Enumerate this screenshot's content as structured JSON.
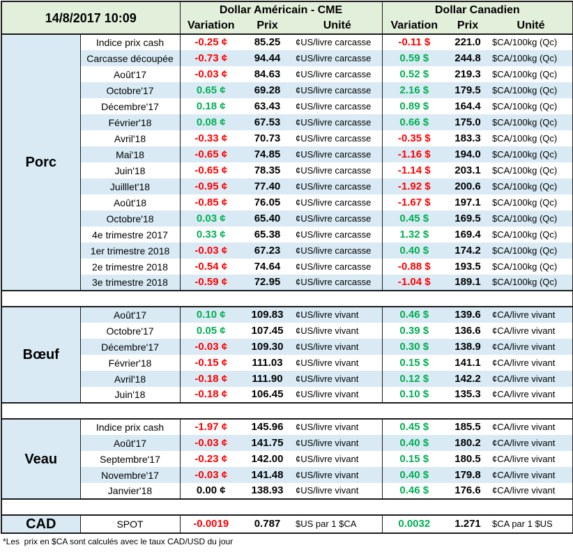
{
  "header": {
    "datetime": "14/8/2017 10:09",
    "usd": {
      "title": "Dollar Américain - CME",
      "variation": "Variation",
      "price": "Prix",
      "unit": "Unité"
    },
    "cad": {
      "title": "Dollar Canadien",
      "variation": "Variation",
      "price": "Prix",
      "unit": "Unité"
    }
  },
  "sections": [
    {
      "name": "Porc",
      "rows": [
        {
          "item": "Indice prix cash",
          "usd_variation": "-0.25 ¢",
          "usd_price": "85.25",
          "usd_unit": "¢US/livre carcasse",
          "cad_variation": "-0.11 $",
          "cad_price": "221.0",
          "cad_unit": "$CA/100kg (Qc)"
        },
        {
          "item": "Carcasse découpée",
          "usd_variation": "-0.73 ¢",
          "usd_price": "94.44",
          "usd_unit": "¢US/livre carcasse",
          "cad_variation": "0.59 $",
          "cad_price": "244.8",
          "cad_unit": "$CA/100kg (Qc)"
        },
        {
          "item": "Août'17",
          "usd_variation": "-0.03 ¢",
          "usd_price": "84.63",
          "usd_unit": "¢US/livre carcasse",
          "cad_variation": "0.52 $",
          "cad_price": "219.3",
          "cad_unit": "$CA/100kg (Qc)"
        },
        {
          "item": "Octobre'17",
          "usd_variation": "0.65 ¢",
          "usd_price": "69.28",
          "usd_unit": "¢US/livre carcasse",
          "cad_variation": "2.16 $",
          "cad_price": "179.5",
          "cad_unit": "$CA/100kg (Qc)"
        },
        {
          "item": "Décembre'17",
          "usd_variation": "0.18 ¢",
          "usd_price": "63.43",
          "usd_unit": "¢US/livre carcasse",
          "cad_variation": "0.89 $",
          "cad_price": "164.4",
          "cad_unit": "$CA/100kg (Qc)"
        },
        {
          "item": "Février'18",
          "usd_variation": "0.08 ¢",
          "usd_price": "67.53",
          "usd_unit": "¢US/livre carcasse",
          "cad_variation": "0.66 $",
          "cad_price": "175.0",
          "cad_unit": "$CA/100kg (Qc)"
        },
        {
          "item": "Avril'18",
          "usd_variation": "-0.33 ¢",
          "usd_price": "70.73",
          "usd_unit": "¢US/livre carcasse",
          "cad_variation": "-0.35 $",
          "cad_price": "183.3",
          "cad_unit": "$CA/100kg (Qc)"
        },
        {
          "item": "Mai'18",
          "usd_variation": "-0.65 ¢",
          "usd_price": "74.85",
          "usd_unit": "¢US/livre carcasse",
          "cad_variation": "-1.16 $",
          "cad_price": "194.0",
          "cad_unit": "$CA/100kg (Qc)"
        },
        {
          "item": "Juin'18",
          "usd_variation": "-0.65 ¢",
          "usd_price": "78.35",
          "usd_unit": "¢US/livre carcasse",
          "cad_variation": "-1.14 $",
          "cad_price": "203.1",
          "cad_unit": "$CA/100kg (Qc)"
        },
        {
          "item": "Juilllet'18",
          "usd_variation": "-0.95 ¢",
          "usd_price": "77.40",
          "usd_unit": "¢US/livre carcasse",
          "cad_variation": "-1.92 $",
          "cad_price": "200.6",
          "cad_unit": "$CA/100kg (Qc)"
        },
        {
          "item": "Août'18",
          "usd_variation": "-0.85 ¢",
          "usd_price": "76.05",
          "usd_unit": "¢US/livre carcasse",
          "cad_variation": "-1.67 $",
          "cad_price": "197.1",
          "cad_unit": "$CA/100kg (Qc)"
        },
        {
          "item": "Octobre'18",
          "usd_variation": "0.03 ¢",
          "usd_price": "65.40",
          "usd_unit": "¢US/livre carcasse",
          "cad_variation": "0.45 $",
          "cad_price": "169.5",
          "cad_unit": "$CA/100kg (Qc)"
        },
        {
          "item": "4e trimestre 2017",
          "usd_variation": "0.33 ¢",
          "usd_price": "65.38",
          "usd_unit": "¢US/livre carcasse",
          "cad_variation": "1.32 $",
          "cad_price": "169.4",
          "cad_unit": "$CA/100kg (Qc)"
        },
        {
          "item": "1er trimestre 2018",
          "usd_variation": "-0.03 ¢",
          "usd_price": "67.23",
          "usd_unit": "¢US/livre carcasse",
          "cad_variation": "0.40 $",
          "cad_price": "174.2",
          "cad_unit": "$CA/100kg (Qc)"
        },
        {
          "item": "2e trimestre 2018",
          "usd_variation": "-0.54 ¢",
          "usd_price": "74.64",
          "usd_unit": "¢US/livre carcasse",
          "cad_variation": "-0.88 $",
          "cad_price": "193.5",
          "cad_unit": "$CA/100kg (Qc)"
        },
        {
          "item": "3e trimestre 2018",
          "usd_variation": "-0.59 ¢",
          "usd_price": "72.95",
          "usd_unit": "¢US/livre carcasse",
          "cad_variation": "-1.04 $",
          "cad_price": "189.1",
          "cad_unit": "$CA/100kg (Qc)"
        }
      ]
    },
    {
      "name": "Bœuf",
      "rows": [
        {
          "item": "Août'17",
          "usd_variation": "0.10 ¢",
          "usd_price": "109.83",
          "usd_unit": "¢US/livre vivant",
          "cad_variation": "0.46 $",
          "cad_price": "139.6",
          "cad_unit": "¢CA/livre vivant"
        },
        {
          "item": "Octobre'17",
          "usd_variation": "0.05 ¢",
          "usd_price": "107.45",
          "usd_unit": "¢US/livre vivant",
          "cad_variation": "0.39 $",
          "cad_price": "136.6",
          "cad_unit": "¢CA/livre vivant"
        },
        {
          "item": "Décembre'17",
          "usd_variation": "-0.03 ¢",
          "usd_price": "109.30",
          "usd_unit": "¢US/livre vivant",
          "cad_variation": "0.30 $",
          "cad_price": "138.9",
          "cad_unit": "¢CA/livre vivant"
        },
        {
          "item": "Février'18",
          "usd_variation": "-0.15 ¢",
          "usd_price": "111.03",
          "usd_unit": "¢US/livre vivant",
          "cad_variation": "0.15 $",
          "cad_price": "141.1",
          "cad_unit": "¢CA/livre vivant"
        },
        {
          "item": "Avril'18",
          "usd_variation": "-0.18 ¢",
          "usd_price": "111.90",
          "usd_unit": "¢US/livre vivant",
          "cad_variation": "0.12 $",
          "cad_price": "142.2",
          "cad_unit": "¢CA/livre vivant"
        },
        {
          "item": "Juin'18",
          "usd_variation": "-0.18 ¢",
          "usd_price": "106.45",
          "usd_unit": "¢US/livre vivant",
          "cad_variation": "0.10 $",
          "cad_price": "135.3",
          "cad_unit": "¢CA/livre vivant"
        }
      ]
    },
    {
      "name": "Veau",
      "rows": [
        {
          "item": "Indice prix cash",
          "usd_variation": "-1.97 ¢",
          "usd_price": "145.96",
          "usd_unit": "¢US/livre vivant",
          "cad_variation": "0.45 $",
          "cad_price": "185.5",
          "cad_unit": "¢CA/livre vivant"
        },
        {
          "item": "Août'17",
          "usd_variation": "-0.03 ¢",
          "usd_price": "141.75",
          "usd_unit": "¢US/livre vivant",
          "cad_variation": "0.40 $",
          "cad_price": "180.2",
          "cad_unit": "¢CA/livre vivant"
        },
        {
          "item": "Septembre'17",
          "usd_variation": "-0.23 ¢",
          "usd_price": "142.00",
          "usd_unit": "¢US/livre vivant",
          "cad_variation": "0.15 $",
          "cad_price": "180.5",
          "cad_unit": "¢CA/livre vivant"
        },
        {
          "item": "Novembre'17",
          "usd_variation": "-0.03 ¢",
          "usd_price": "141.48",
          "usd_unit": "¢US/livre vivant",
          "cad_variation": "0.40 $",
          "cad_price": "179.8",
          "cad_unit": "¢CA/livre vivant"
        },
        {
          "item": "Janvier'18",
          "usd_variation": "0.00 ¢",
          "usd_price": "138.93",
          "usd_unit": "¢US/livre vivant",
          "cad_variation": "0.46 $",
          "cad_price": "176.6",
          "cad_unit": "¢CA/livre vivant"
        }
      ]
    }
  ],
  "exchange_rate": {
    "name": "CAD",
    "item": "SPOT",
    "usd_variation": "-0.0019",
    "usd_price": "0.787",
    "usd_unit": "$US par 1 $CA",
    "cad_variation": "0.0032",
    "cad_price": "1.271",
    "cad_unit": "$CA par 1 $US"
  },
  "footnote": "*Les  prix en $CA sont calculés avec le taux CAD/USD du jour",
  "colors": {
    "negative": "#ff0000",
    "positive": "#00b050",
    "neutral": "#000000",
    "header_background": "#e2efda",
    "band_background": "#d9eaf4",
    "border": "#1a1a1a"
  }
}
